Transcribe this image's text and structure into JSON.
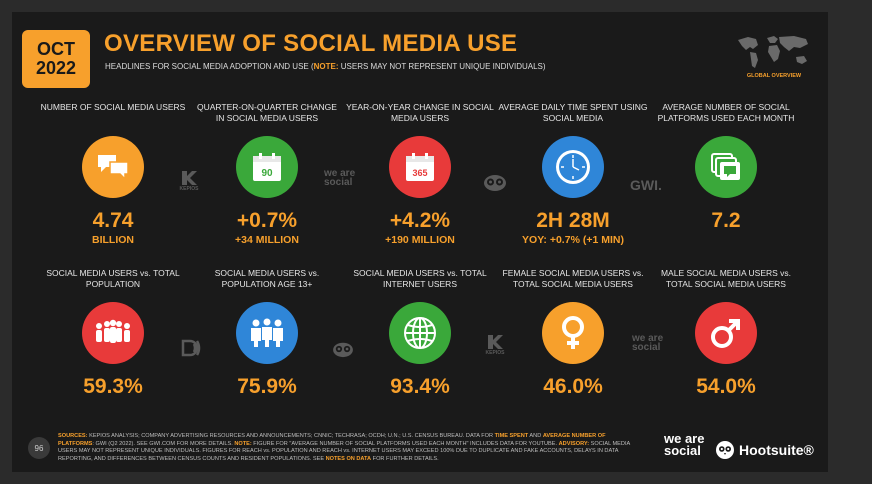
{
  "header": {
    "date_month": "OCT",
    "date_year": "2022",
    "title": "OVERVIEW OF SOCIAL MEDIA USE",
    "subtitle_main": "HEADLINES FOR SOCIAL MEDIA ADOPTION AND USE (",
    "subtitle_note_label": "NOTE:",
    "subtitle_note_text": " USERS MAY NOT REPRESENT UNIQUE INDIVIDUALS)",
    "map_label": "GLOBAL OVERVIEW"
  },
  "row1": [
    {
      "label": "NUMBER OF SOCIAL MEDIA USERS",
      "value": "4.74",
      "sub": "BILLION",
      "color": "#f7a02c",
      "icon": "chat-bubbles-icon"
    },
    {
      "label": "QUARTER-ON-QUARTER CHANGE IN SOCIAL MEDIA USERS",
      "value": "+0.7%",
      "sub": "+34 MILLION",
      "color": "#3aa83a",
      "icon": "calendar-90-icon",
      "icon_text": "90"
    },
    {
      "label": "YEAR-ON-YEAR CHANGE IN SOCIAL MEDIA USERS",
      "value": "+4.2%",
      "sub": "+190 MILLION",
      "color": "#e83a3a",
      "icon": "calendar-365-icon",
      "icon_text": "365"
    },
    {
      "label": "AVERAGE DAILY TIME SPENT USING SOCIAL MEDIA",
      "value": "2H 28M",
      "sub": "YOY: +0.7% (+1 MIN)",
      "color": "#2f86d8",
      "icon": "clock-icon"
    },
    {
      "label": "AVERAGE NUMBER OF SOCIAL PLATFORMS USED EACH MONTH",
      "value": "7.2",
      "sub": "",
      "color": "#3aa83a",
      "icon": "stacked-windows-icon"
    }
  ],
  "row2": [
    {
      "label": "SOCIAL MEDIA USERS vs. TOTAL POPULATION",
      "value": "59.3%",
      "color": "#e83a3a",
      "icon": "crowd-icon"
    },
    {
      "label": "SOCIAL MEDIA USERS vs. POPULATION AGE 13+",
      "value": "75.9%",
      "color": "#2f86d8",
      "icon": "adults-icon"
    },
    {
      "label": "SOCIAL MEDIA USERS vs. TOTAL INTERNET USERS",
      "value": "93.4%",
      "color": "#3aa83a",
      "icon": "globe-icon"
    },
    {
      "label": "FEMALE SOCIAL MEDIA USERS vs. TOTAL SOCIAL MEDIA USERS",
      "value": "46.0%",
      "color": "#f7a02c",
      "icon": "female-symbol-icon"
    },
    {
      "label": "MALE SOCIAL MEDIA USERS vs. TOTAL SOCIAL MEDIA USERS",
      "value": "54.0%",
      "color": "#e83a3a",
      "icon": "male-symbol-icon"
    }
  ],
  "partners": {
    "kepios": "KEPIOS",
    "we_are_social": "we are social",
    "gwi": "GWI."
  },
  "footer": {
    "page_number": "96",
    "sources_label": "SOURCES:",
    "sources_text_1": " KEPIOS ANALYSIS; COMPANY ADVERTISING RESOURCES AND ANNOUNCEMENTS; CNNIC; TECHRASA; OCDH; U.N.; U.S. CENSUS BUREAU. DATA FOR ",
    "sources_hl_1": "TIME SPENT",
    "sources_text_2": " AND ",
    "sources_hl_2": "AVERAGE NUMBER OF PLATFORMS",
    "sources_text_3": ": GWI (Q2 2022). SEE GWI.COM FOR MORE DETAILS. ",
    "sources_hl_3": "NOTE:",
    "sources_text_4": " FIGURE FOR \"AVERAGE NUMBER OF SOCIAL PLATFORMS USED EACH MONTH\" INCLUDES DATA FOR YOUTUBE. ",
    "sources_hl_4": "ADVISORY:",
    "sources_text_5": " SOCIAL MEDIA USERS MAY NOT REPRESENT UNIQUE INDIVIDUALS. FIGURES FOR REACH vs. POPULATION AND REACH vs. INTERNET USERS MAY EXCEED 100% DUE TO DUPLICATE AND FAKE ACCOUNTS, DELAYS IN DATA REPORTING, AND DIFFERENCES BETWEEN CENSUS COUNTS AND RESIDENT POPULATIONS. SEE ",
    "sources_hl_5": "NOTES ON DATA",
    "sources_text_6": " FOR FURTHER DETAILS.",
    "we_are_social_logo": "we are social",
    "hootsuite_logo": "Hootsuite®"
  }
}
